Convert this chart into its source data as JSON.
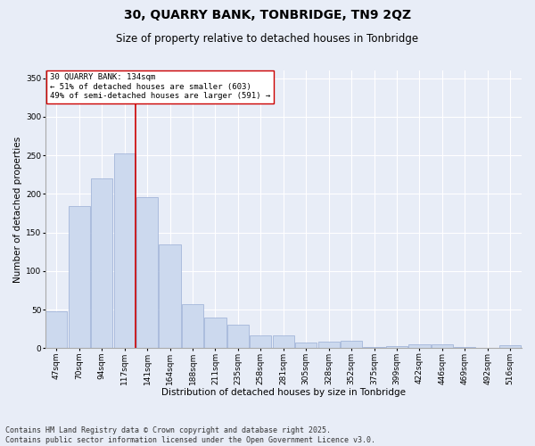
{
  "title": "30, QUARRY BANK, TONBRIDGE, TN9 2QZ",
  "subtitle": "Size of property relative to detached houses in Tonbridge",
  "xlabel": "Distribution of detached houses by size in Tonbridge",
  "ylabel": "Number of detached properties",
  "categories": [
    "47sqm",
    "70sqm",
    "94sqm",
    "117sqm",
    "141sqm",
    "164sqm",
    "188sqm",
    "211sqm",
    "235sqm",
    "258sqm",
    "281sqm",
    "305sqm",
    "328sqm",
    "352sqm",
    "375sqm",
    "399sqm",
    "422sqm",
    "446sqm",
    "469sqm",
    "492sqm",
    "516sqm"
  ],
  "values": [
    48,
    184,
    220,
    253,
    196,
    135,
    57,
    40,
    30,
    16,
    16,
    7,
    9,
    10,
    2,
    3,
    5,
    5,
    2,
    0,
    4
  ],
  "bar_color": "#ccd9ee",
  "bar_edge_color": "#99aed4",
  "vline_x_index": 4,
  "vline_color": "#cc0000",
  "annotation_text": "30 QUARRY BANK: 134sqm\n← 51% of detached houses are smaller (603)\n49% of semi-detached houses are larger (591) →",
  "annotation_box_facecolor": "#ffffff",
  "annotation_box_edgecolor": "#cc0000",
  "ylim": [
    0,
    360
  ],
  "yticks": [
    0,
    50,
    100,
    150,
    200,
    250,
    300,
    350
  ],
  "bg_color": "#e8edf7",
  "grid_color": "#ffffff",
  "footer": "Contains HM Land Registry data © Crown copyright and database right 2025.\nContains public sector information licensed under the Open Government Licence v3.0.",
  "title_fontsize": 10,
  "subtitle_fontsize": 8.5,
  "axis_label_fontsize": 7.5,
  "tick_fontsize": 6.5,
  "annotation_fontsize": 6.5,
  "footer_fontsize": 6.0
}
